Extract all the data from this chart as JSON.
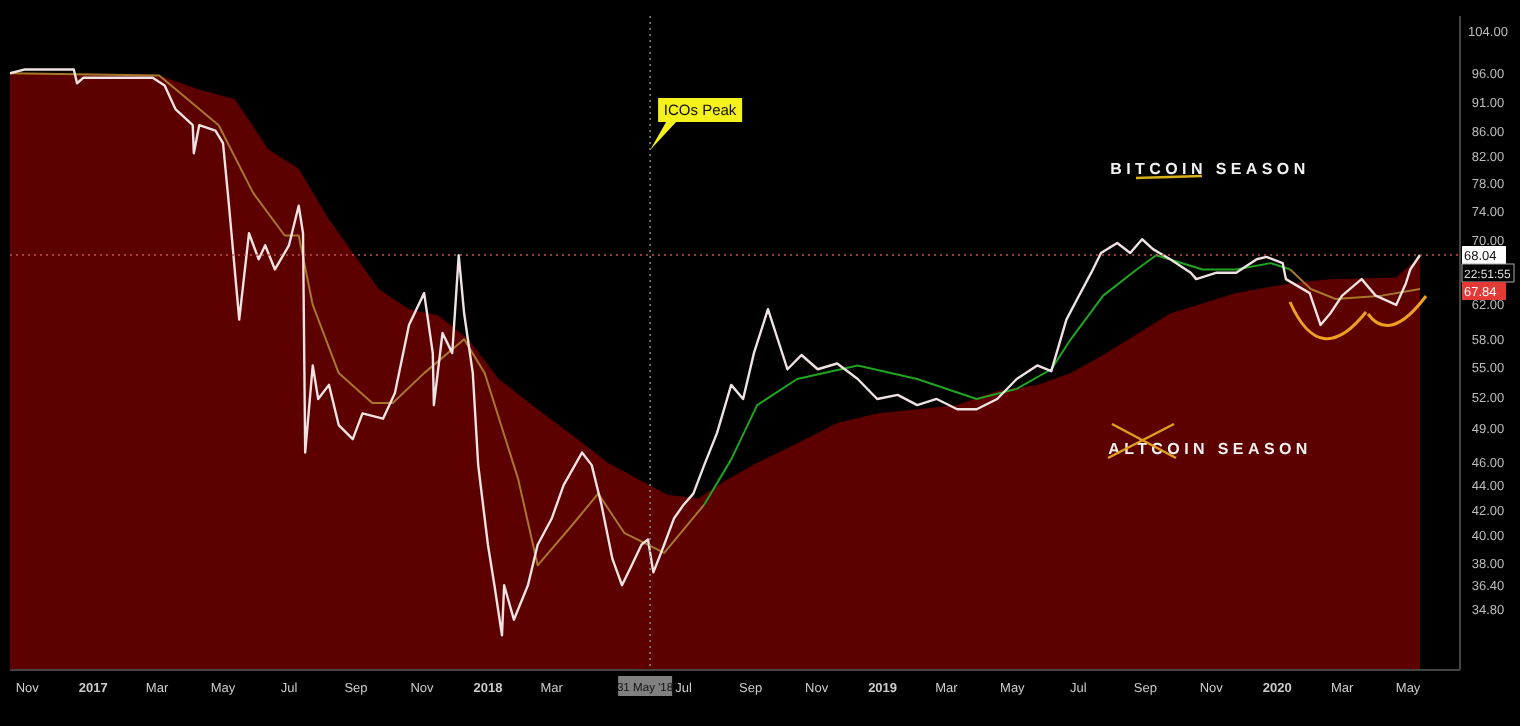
{
  "chart_data": {
    "type": "line",
    "log": "y",
    "xlim": [
      "2016-10-16",
      "2020-06-18"
    ],
    "ylim": [
      31,
      107
    ],
    "xticks": [
      {
        "value": "2016-11-01",
        "label": "Nov"
      },
      {
        "value": "2017-01-01",
        "label": "2017"
      },
      {
        "value": "2017-03-01",
        "label": "Mar"
      },
      {
        "value": "2017-05-01",
        "label": "May"
      },
      {
        "value": "2017-07-01",
        "label": "Jul"
      },
      {
        "value": "2017-09-01",
        "label": "Sep"
      },
      {
        "value": "2017-11-01",
        "label": "Nov"
      },
      {
        "value": "2018-01-01",
        "label": "2018"
      },
      {
        "value": "2018-03-01",
        "label": "Mar"
      },
      {
        "value": "2018-07-01",
        "label": "Jul"
      },
      {
        "value": "2018-09-01",
        "label": "Sep"
      },
      {
        "value": "2018-11-01",
        "label": "Nov"
      },
      {
        "value": "2019-01-01",
        "label": "2019"
      },
      {
        "value": "2019-03-01",
        "label": "Mar"
      },
      {
        "value": "2019-05-01",
        "label": "May"
      },
      {
        "value": "2019-07-01",
        "label": "Jul"
      },
      {
        "value": "2019-09-01",
        "label": "Sep"
      },
      {
        "value": "2019-11-01",
        "label": "Nov"
      },
      {
        "value": "2020-01-01",
        "label": "2020"
      },
      {
        "value": "2020-03-01",
        "label": "Mar"
      },
      {
        "value": "2020-05-01",
        "label": "May"
      }
    ],
    "yticks": [
      {
        "value": 104,
        "label": "104.00"
      },
      {
        "value": 96,
        "label": "96.00"
      },
      {
        "value": 91,
        "label": "91.00"
      },
      {
        "value": 86,
        "label": "86.00"
      },
      {
        "value": 82,
        "label": "82.00"
      },
      {
        "value": 78,
        "label": "78.00"
      },
      {
        "value": 74,
        "label": "74.00"
      },
      {
        "value": 70,
        "label": "70.00"
      },
      {
        "value": 62,
        "label": "62.00"
      },
      {
        "value": 58,
        "label": "58.00"
      },
      {
        "value": 55,
        "label": "55.00"
      },
      {
        "value": 52,
        "label": "52.00"
      },
      {
        "value": 49,
        "label": "49.00"
      },
      {
        "value": 46,
        "label": "46.00"
      },
      {
        "value": 44,
        "label": "44.00"
      },
      {
        "value": 42,
        "label": "42.00"
      },
      {
        "value": 40,
        "label": "40.00"
      },
      {
        "value": 38,
        "label": "38.00"
      },
      {
        "value": 36.4,
        "label": "36.40"
      },
      {
        "value": 34.8,
        "label": "34.80"
      }
    ],
    "series": [
      {
        "type": "area",
        "color": "#5c0000",
        "x": [
          "2016-10-16",
          "2017-03-03",
          "2017-04-09",
          "2017-05-12",
          "2017-06-12",
          "2017-07-10",
          "2017-08-07",
          "2017-09-22",
          "2017-10-20",
          "2017-11-16",
          "2017-12-14",
          "2018-01-11",
          "2018-02-16",
          "2018-03-25",
          "2018-04-22",
          "2018-05-20",
          "2018-06-16",
          "2018-07-14",
          "2018-08-11",
          "2018-09-07",
          "2018-10-14",
          "2018-11-20",
          "2018-12-27",
          "2019-02-02",
          "2019-03-11",
          "2019-04-17",
          "2019-05-24",
          "2019-06-24",
          "2019-07-24",
          "2019-09-24",
          "2019-11-24",
          "2020-01-13",
          "2020-02-19",
          "2020-04-20",
          "2020-05-12"
        ],
        "values": [
          96.0,
          95.6,
          93.1,
          91.4,
          83.1,
          80.1,
          72.8,
          63.8,
          61.4,
          60.7,
          58.0,
          53.8,
          50.8,
          48.0,
          45.9,
          44.5,
          43.2,
          42.9,
          44.5,
          45.9,
          47.6,
          49.5,
          50.4,
          50.8,
          51.2,
          52.6,
          53.2,
          54.4,
          56.3,
          60.9,
          63.3,
          64.5,
          65.0,
          65.2,
          67.84
        ]
      },
      {
        "color": "#a8772a",
        "x": [
          "2016-10-16",
          "2017-03-03",
          "2017-04-27",
          "2017-05-29",
          "2017-06-27",
          "2017-07-10",
          "2017-07-23",
          "2017-08-16",
          "2017-09-16",
          "2017-10-05",
          "2017-11-03",
          "2017-12-10",
          "2017-12-29",
          "2018-01-29",
          "2018-02-16",
          "2018-03-20",
          "2018-04-13",
          "2018-05-07",
          "2018-06-13",
          "2018-07-20"
        ],
        "values": [
          96.0,
          95.6,
          87.0,
          76.5,
          70.6,
          70.6,
          61.9,
          54.4,
          51.4,
          51.4,
          54.4,
          58.0,
          54.4,
          44.5,
          37.8,
          40.8,
          43.3,
          40.2,
          38.7,
          42.4
        ]
      },
      {
        "color": "#1fa51f",
        "x": [
          "2018-07-20",
          "2018-08-14",
          "2018-09-07",
          "2018-10-14",
          "2018-12-09",
          "2019-02-02",
          "2019-03-29",
          "2019-05-05",
          "2019-06-06",
          "2019-06-24",
          "2019-07-24",
          "2019-08-24",
          "2019-09-11",
          "2019-10-24",
          "2019-11-24",
          "2019-12-26",
          "2020-01-13"
        ],
        "values": [
          42.4,
          46.2,
          51.2,
          53.8,
          55.2,
          53.8,
          51.8,
          52.8,
          54.8,
          58.0,
          63.0,
          66.2,
          68.0,
          66.2,
          66.2,
          67.0,
          66.2
        ]
      },
      {
        "color": "#a8772a",
        "x": [
          "2020-01-13",
          "2020-02-01",
          "2020-02-24",
          "2020-04-07",
          "2020-05-12"
        ],
        "values": [
          66.2,
          63.8,
          62.6,
          63.0,
          63.8
        ]
      },
      {
        "color": "#eee2e2",
        "x": [
          "2016-10-16",
          "2016-10-30",
          "2016-12-14",
          "2016-12-17",
          "2016-12-23",
          "2017-02-25",
          "2017-03-08",
          "2017-03-18",
          "2017-04-03",
          "2017-04-04",
          "2017-04-09",
          "2017-04-24",
          "2017-05-01",
          "2017-05-06",
          "2017-05-16",
          "2017-05-25",
          "2017-06-03",
          "2017-06-09",
          "2017-06-18",
          "2017-07-01",
          "2017-07-10",
          "2017-07-14",
          "2017-07-16",
          "2017-07-23",
          "2017-07-28",
          "2017-08-07",
          "2017-08-16",
          "2017-08-29",
          "2017-09-07",
          "2017-09-26",
          "2017-10-07",
          "2017-10-20",
          "2017-11-03",
          "2017-11-11",
          "2017-11-12",
          "2017-11-20",
          "2017-11-29",
          "2017-12-05",
          "2017-12-10",
          "2017-12-18",
          "2017-12-23",
          "2018-01-01",
          "2018-01-07",
          "2018-01-14",
          "2018-01-16",
          "2018-01-25",
          "2018-02-07",
          "2018-02-16",
          "2018-03-01",
          "2018-03-12",
          "2018-03-29",
          "2018-04-07",
          "2018-04-16",
          "2018-04-26",
          "2018-05-05",
          "2018-05-14",
          "2018-05-23",
          "2018-05-29",
          "2018-06-03",
          "2018-06-13",
          "2018-06-22",
          "2018-07-01",
          "2018-07-10",
          "2018-07-20",
          "2018-08-01",
          "2018-08-14",
          "2018-08-25",
          "2018-09-04",
          "2018-09-17",
          "2018-10-05",
          "2018-10-18",
          "2018-11-02",
          "2018-11-20",
          "2018-12-09",
          "2018-12-27",
          "2019-01-15",
          "2019-02-02",
          "2019-02-20",
          "2019-03-11",
          "2019-03-29",
          "2019-04-17",
          "2019-05-05",
          "2019-05-24",
          "2019-06-06",
          "2019-06-20",
          "2019-06-30",
          "2019-07-13",
          "2019-07-22",
          "2019-08-06",
          "2019-08-18",
          "2019-08-29",
          "2019-09-08",
          "2019-09-24",
          "2019-10-13",
          "2019-10-18",
          "2019-11-06",
          "2019-11-24",
          "2019-12-13",
          "2019-12-22",
          "2020-01-06",
          "2020-01-09",
          "2020-01-31",
          "2020-02-10",
          "2020-02-19",
          "2020-03-01",
          "2020-03-19",
          "2020-04-01",
          "2020-04-20",
          "2020-04-29",
          "2020-05-03",
          "2020-05-12"
        ],
        "values": [
          96.0,
          96.7,
          96.7,
          94.2,
          95.2,
          95.2,
          93.8,
          89.7,
          87.0,
          82.5,
          87.0,
          86.1,
          84.1,
          75.6,
          60.2,
          70.9,
          67.5,
          69.3,
          66.2,
          69.3,
          74.7,
          70.9,
          46.8,
          55.2,
          51.8,
          53.2,
          49.3,
          48.0,
          50.4,
          49.9,
          52.4,
          59.6,
          63.3,
          56.5,
          51.2,
          58.7,
          56.5,
          68.0,
          60.9,
          54.4,
          45.7,
          39.3,
          36.4,
          33.1,
          36.4,
          34.1,
          36.4,
          39.3,
          41.3,
          44.0,
          46.8,
          45.7,
          42.4,
          38.3,
          36.4,
          37.8,
          39.3,
          39.7,
          37.3,
          39.3,
          41.3,
          42.4,
          43.3,
          45.7,
          48.6,
          53.2,
          51.8,
          56.5,
          61.4,
          54.8,
          56.3,
          54.8,
          55.4,
          53.8,
          51.8,
          52.2,
          51.2,
          51.8,
          50.8,
          50.8,
          51.8,
          53.8,
          55.2,
          54.6,
          60.2,
          62.6,
          65.8,
          68.3,
          69.6,
          68.3,
          70.1,
          68.8,
          67.5,
          65.8,
          65.0,
          65.8,
          65.8,
          67.5,
          67.8,
          67.0,
          65.0,
          63.3,
          59.6,
          60.9,
          63.0,
          65.0,
          63.0,
          61.9,
          64.5,
          66.2,
          68.04
        ]
      }
    ],
    "ref_lines": [
      {
        "axis": "x",
        "value": "2018-05-31",
        "label": "31 May '18",
        "color": "#808080",
        "line_style": "dotted"
      },
      {
        "axis": "y",
        "value": 68.04,
        "label": "68.04",
        "color": "#c0504d",
        "line_style": "dotted"
      }
    ],
    "annotations": [
      {
        "text": "ICOs Peak",
        "x": "2018-05-31",
        "y": 83
      },
      "BITCOIN SEASON",
      "ALTCOIN SEASON",
      "22:51:55",
      "67.84"
    ]
  }
}
